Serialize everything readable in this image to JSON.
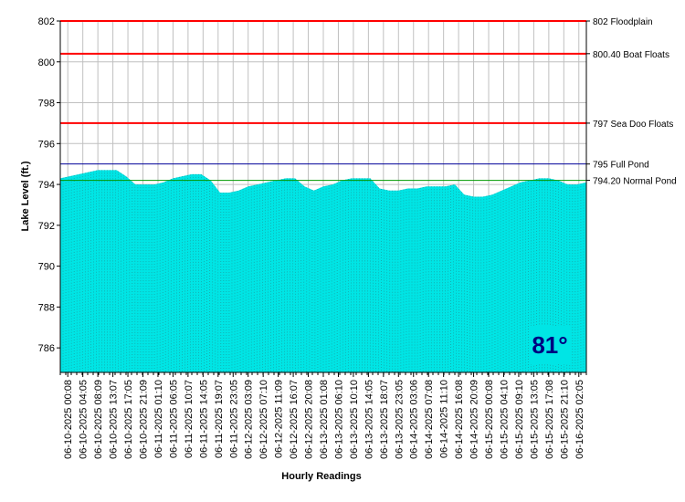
{
  "chart_data": {
    "type": "area",
    "title": "",
    "xlabel": "Hourly Readings",
    "ylabel": "Lake Level (ft.)",
    "ylim": [
      784.8,
      802
    ],
    "yticks": [
      786,
      788,
      790,
      792,
      794,
      796,
      798,
      800,
      802
    ],
    "grid": true,
    "fill_color": "#00e5e5",
    "x_tick_labels": [
      "06-10-2025 00:08",
      "06-10-2025 04:05",
      "06-10-2025 08:09",
      "06-10-2025 13:07",
      "06-10-2025 17:05",
      "06-10-2025 21:09",
      "06-11-2025 01:10",
      "06-11-2025 06:05",
      "06-11-2025 10:07",
      "06-11-2025 14:05",
      "06-11-2025 19:07",
      "06-11-2025 23:05",
      "06-12-2025 03:09",
      "06-12-2025 07:10",
      "06-12-2025 11:09",
      "06-12-2025 16:07",
      "06-12-2025 20:08",
      "06-13-2025 01:08",
      "06-13-2025 06:10",
      "06-13-2025 10:10",
      "06-13-2025 14:05",
      "06-13-2025 18:07",
      "06-13-2025 23:05",
      "06-14-2025 03:06",
      "06-14-2025 07:08",
      "06-14-2025 11:10",
      "06-14-2025 16:08",
      "06-14-2025 20:09",
      "06-15-2025 00:08",
      "06-15-2025 04:10",
      "06-15-2025 09:10",
      "06-15-2025 13:05",
      "06-15-2025 17:08",
      "06-15-2025 21:10",
      "06-16-2025 02:05"
    ],
    "series": [
      {
        "values": [
          794.3,
          794.4,
          794.5,
          794.6,
          794.7,
          794.7,
          794.7,
          794.4,
          794.0,
          794.0,
          794.0,
          794.1,
          794.3,
          794.4,
          794.5,
          794.5,
          794.2,
          793.6,
          793.6,
          793.7,
          793.9,
          794.0,
          794.1,
          794.2,
          794.3,
          794.3,
          793.9,
          793.7,
          793.9,
          794.0,
          794.2,
          794.3,
          794.3,
          794.3,
          793.8,
          793.7,
          793.7,
          793.8,
          793.8,
          793.9,
          793.9,
          793.9,
          794.0,
          793.5,
          793.4,
          793.4,
          793.5,
          793.7,
          793.9,
          794.1,
          794.2,
          794.3,
          794.3,
          794.2,
          794.0,
          794.0,
          794.1
        ]
      }
    ],
    "reference_lines": [
      {
        "value": 802,
        "label": "802 Floodplain",
        "color": "#ff0000"
      },
      {
        "value": 800.4,
        "label": "800.40 Boat Floats",
        "color": "#ff0000"
      },
      {
        "value": 797,
        "label": "797 Sea Doo Floats",
        "color": "#ff0000"
      },
      {
        "value": 795,
        "label": "795 Full Pond",
        "color": "#000099"
      },
      {
        "value": 794.2,
        "label": "794.20 Normal Pond",
        "color": "#009900"
      }
    ],
    "temperature": {
      "value": "81°",
      "text_color": "#000080",
      "background": "#00e5e5"
    }
  }
}
